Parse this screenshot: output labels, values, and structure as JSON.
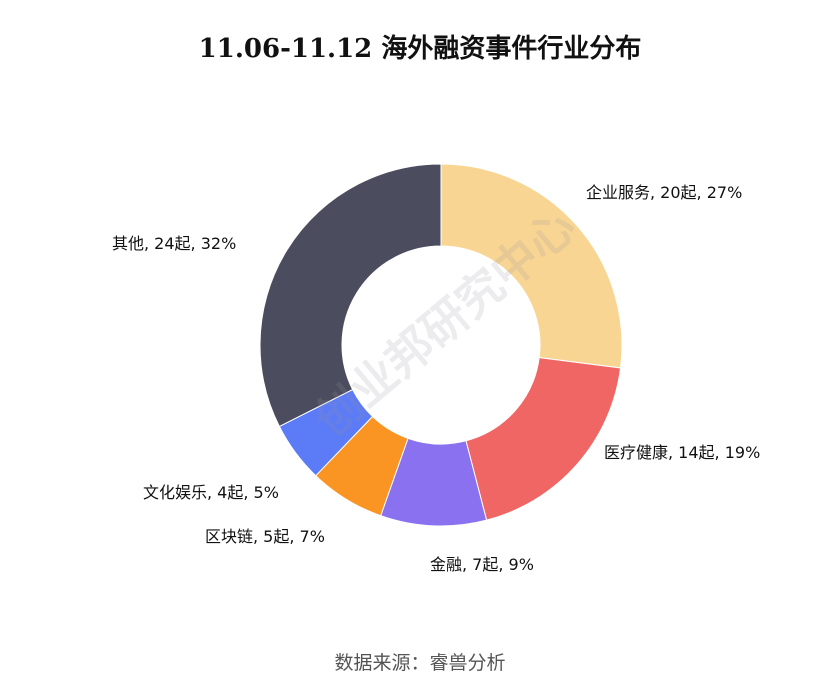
{
  "chart_data": {
    "type": "pie",
    "donut": true,
    "title": "11.06-11.12 海外融资事件行业分布",
    "slices": [
      {
        "name": "企业服务",
        "count": 20,
        "count_label": "20起",
        "percent": 27,
        "label": "企业服务, 20起, 27%",
        "color": "#F8D592"
      },
      {
        "name": "医疗健康",
        "count": 14,
        "count_label": "14起",
        "percent": 19,
        "label": "医疗健康, 14起, 19%",
        "color": "#EF6664"
      },
      {
        "name": "金融",
        "count": 7,
        "count_label": "7起",
        "percent": 9,
        "label": "金融, 7起, 9%",
        "color": "#8A71F0"
      },
      {
        "name": "区块链",
        "count": 5,
        "count_label": "5起",
        "percent": 7,
        "label": "区块链, 5起, 7%",
        "color": "#FA9422"
      },
      {
        "name": "文化娱乐",
        "count": 4,
        "count_label": "4起",
        "percent": 5,
        "label": "文化娱乐, 4起, 5%",
        "color": "#5B7BF7"
      },
      {
        "name": "其他",
        "count": 24,
        "count_label": "24起",
        "percent": 32,
        "label": "其他, 24起, 32%",
        "color": "#4B4D5E"
      }
    ]
  },
  "watermark": "创业邦研究中心",
  "source": "数据来源：睿兽分析"
}
